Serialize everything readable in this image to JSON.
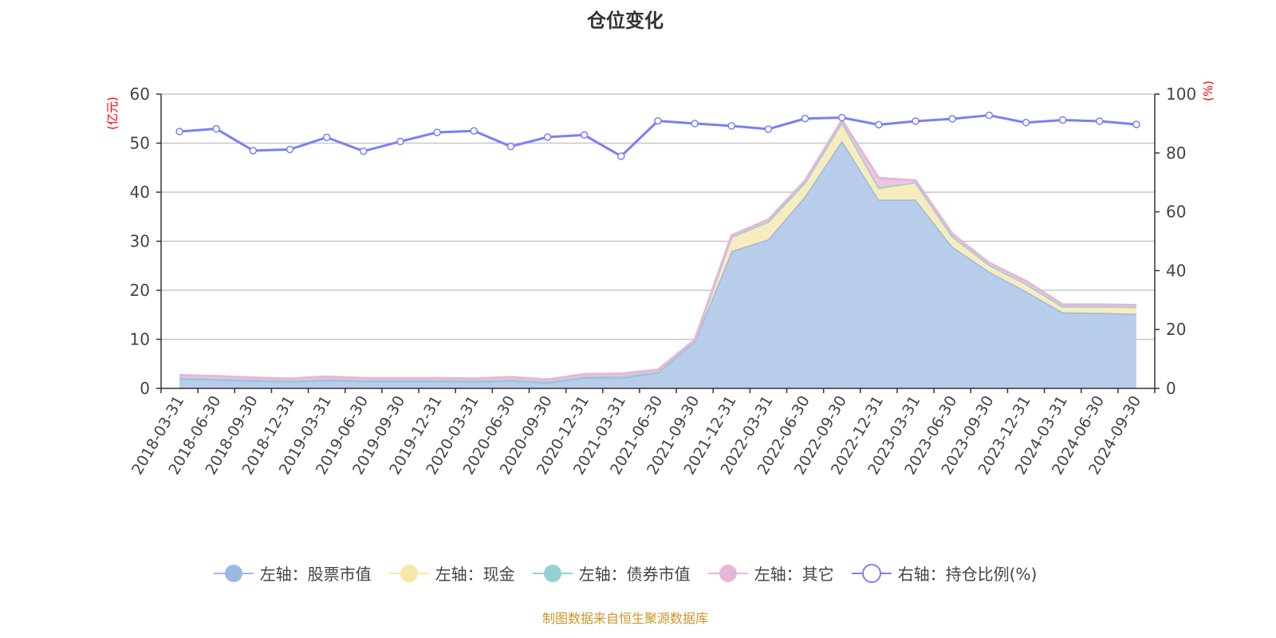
{
  "title": "仓位变化",
  "footer": "制图数据来自恒生聚源数据库",
  "chart_data": {
    "type": "area",
    "title": "仓位变化",
    "left_axis": {
      "label": "(亿元)",
      "range": [
        0,
        60
      ],
      "ticks": [
        0,
        10,
        20,
        30,
        40,
        50,
        60
      ],
      "label_color": "#ff0000"
    },
    "right_axis": {
      "label": "(%)",
      "range": [
        0,
        100
      ],
      "ticks": [
        0,
        20,
        40,
        60,
        80,
        100
      ],
      "label_color": "#ff0000"
    },
    "grid": true,
    "legend_position": "bottom",
    "categories": [
      "2018-03-31",
      "2018-06-30",
      "2018-09-30",
      "2018-12-31",
      "2019-03-31",
      "2019-06-30",
      "2019-09-30",
      "2019-12-31",
      "2020-03-31",
      "2020-06-30",
      "2020-09-30",
      "2020-12-31",
      "2021-03-31",
      "2021-06-30",
      "2021-09-30",
      "2021-12-31",
      "2022-03-31",
      "2022-06-30",
      "2022-09-30",
      "2022-12-31",
      "2023-03-31",
      "2023-06-30",
      "2023-09-30",
      "2023-12-31",
      "2024-03-31",
      "2024-06-30",
      "2024-09-30"
    ],
    "series": [
      {
        "name": "左轴：股票市值",
        "axis": "left",
        "stacked": true,
        "color": "#9bb8e2",
        "fill": "#b8cdea",
        "values": [
          2.0,
          1.8,
          1.6,
          1.4,
          1.7,
          1.5,
          1.5,
          1.5,
          1.4,
          1.6,
          1.2,
          2.2,
          2.2,
          3.2,
          9.6,
          28.0,
          30.4,
          39.2,
          50.5,
          38.5,
          38.5,
          28.9,
          23.8,
          19.8,
          15.5,
          15.4,
          15.2
        ]
      },
      {
        "name": "左轴：现金",
        "axis": "left",
        "stacked": true,
        "color": "#f7e7a6",
        "fill": "#f8ecbe",
        "values": [
          0.2,
          0.2,
          0.2,
          0.2,
          0.2,
          0.2,
          0.2,
          0.2,
          0.2,
          0.2,
          0.2,
          0.2,
          0.3,
          0.2,
          0.2,
          2.9,
          3.6,
          2.8,
          3.6,
          2.1,
          3.5,
          2.1,
          1.4,
          1.5,
          1.2,
          1.3,
          1.4
        ]
      },
      {
        "name": "左轴：债券市值",
        "axis": "left",
        "stacked": true,
        "color": "#93d1d3",
        "fill": "#a9dbdc",
        "values": [
          0,
          0,
          0,
          0,
          0,
          0,
          0,
          0,
          0,
          0,
          0,
          0,
          0,
          0,
          0,
          0,
          0,
          0,
          0.2,
          0.4,
          0,
          0,
          0,
          0,
          0,
          0,
          0
        ]
      },
      {
        "name": "左轴：其它",
        "axis": "left",
        "stacked": true,
        "color": "#e6b6d8",
        "fill": "#ecc6e1",
        "values": [
          0.5,
          0.5,
          0.4,
          0.4,
          0.5,
          0.4,
          0.4,
          0.4,
          0.4,
          0.5,
          0.4,
          0.5,
          0.5,
          0.4,
          0.1,
          0.3,
          0.4,
          0.4,
          0.4,
          1.9,
          0.4,
          0.5,
          0.4,
          0.6,
          0.4,
          0.4,
          0.4
        ]
      },
      {
        "name": "右轴：持仓比例(%)",
        "axis": "right",
        "type": "line",
        "color": "#7b7ff5",
        "values": [
          87.3,
          88.2,
          80.8,
          81.2,
          85.3,
          80.6,
          83.9,
          87.0,
          87.5,
          82.2,
          85.4,
          86.1,
          78.9,
          90.9,
          90.0,
          89.2,
          88.1,
          91.7,
          92.0,
          89.6,
          90.8,
          91.6,
          92.8,
          90.3,
          91.2,
          90.8,
          89.7
        ]
      }
    ]
  }
}
